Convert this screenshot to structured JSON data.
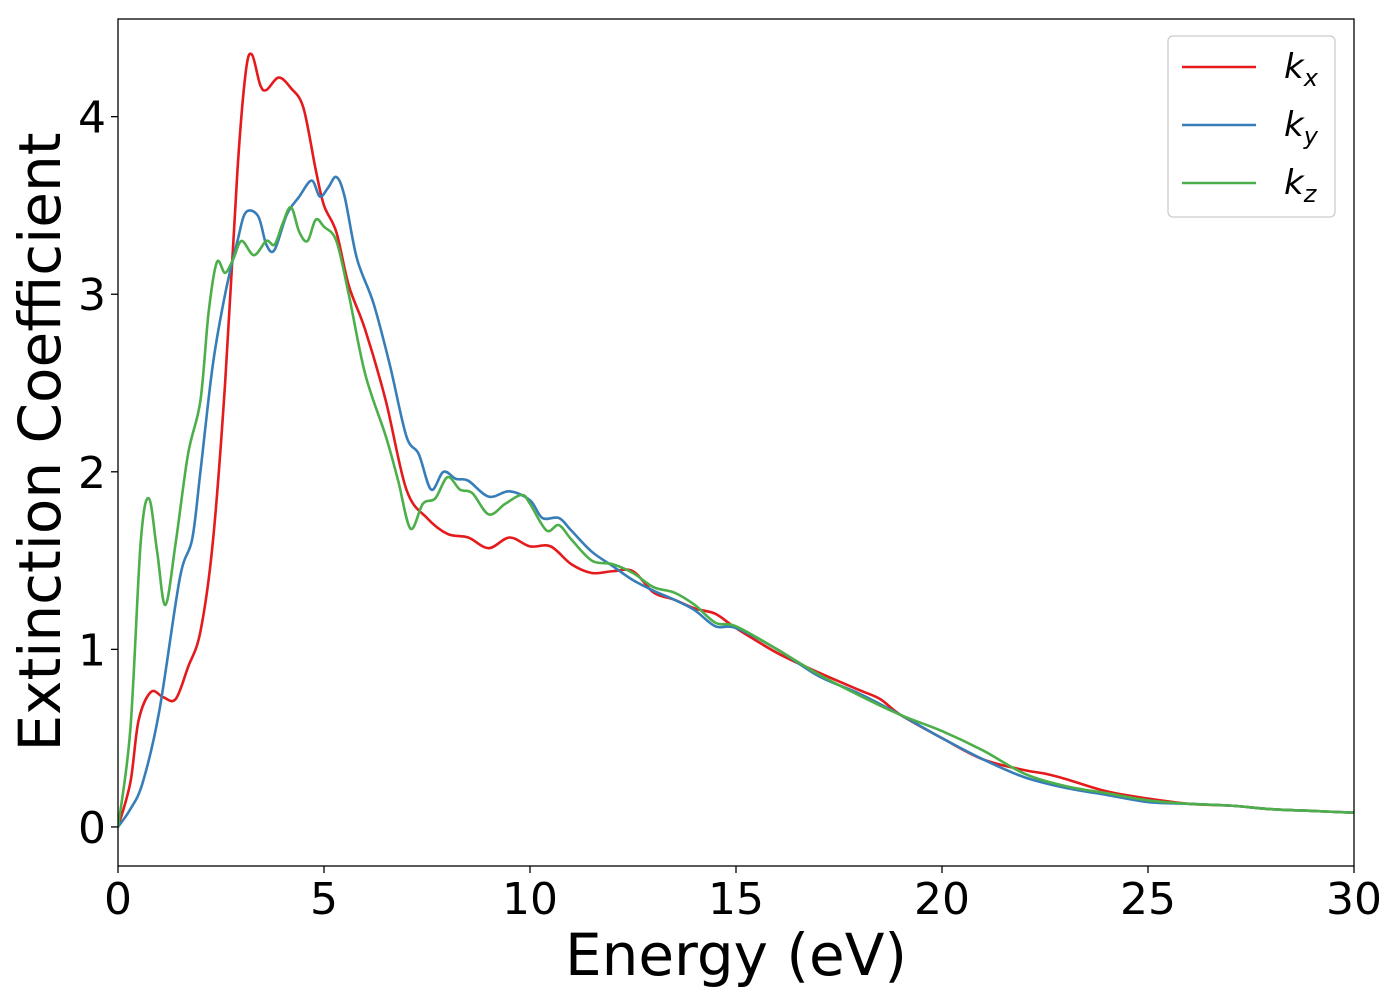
{
  "chart_data": {
    "type": "line",
    "title": "",
    "xlabel": "Energy (eV)",
    "ylabel": "Extinction Coefficient",
    "xlim": [
      0,
      30
    ],
    "ylim": [
      -0.22,
      4.55
    ],
    "xticks": [
      0,
      5,
      10,
      15,
      20,
      25,
      30
    ],
    "xtick_labels": [
      "0",
      "5",
      "10",
      "15",
      "20",
      "25",
      "30"
    ],
    "yticks": [
      0,
      1,
      2,
      3,
      4
    ],
    "ytick_labels": [
      "0",
      "1",
      "2",
      "3",
      "4"
    ],
    "grid": false,
    "legend_position": "top-right",
    "series": [
      {
        "name": "k_x",
        "legend_main": "k",
        "legend_sub": "x",
        "color": "#e41a1c",
        "x": [
          0,
          0.3,
          0.5,
          0.8,
          1.1,
          1.4,
          1.7,
          2.0,
          2.3,
          2.6,
          2.9,
          3.1,
          3.25,
          3.45,
          3.6,
          3.9,
          4.2,
          4.5,
          4.8,
          5.0,
          5.3,
          5.6,
          6.0,
          6.5,
          7.0,
          7.5,
          8.0,
          8.5,
          9.0,
          9.5,
          10.0,
          10.5,
          11.0,
          11.5,
          12.0,
          12.5,
          13.0,
          13.5,
          14.0,
          14.5,
          15.0,
          16.0,
          17.0,
          18.0,
          18.5,
          19.0,
          20.0,
          21.0,
          22.0,
          22.5,
          23.0,
          24.0,
          25.0,
          26.0,
          27.0,
          28.0,
          29.0,
          30.0
        ],
        "y": [
          0.0,
          0.25,
          0.6,
          0.76,
          0.73,
          0.72,
          0.9,
          1.1,
          1.6,
          2.5,
          3.7,
          4.25,
          4.35,
          4.18,
          4.15,
          4.22,
          4.16,
          4.05,
          3.7,
          3.5,
          3.35,
          3.05,
          2.8,
          2.4,
          1.9,
          1.74,
          1.65,
          1.63,
          1.57,
          1.63,
          1.58,
          1.58,
          1.48,
          1.43,
          1.44,
          1.44,
          1.32,
          1.28,
          1.23,
          1.2,
          1.12,
          0.98,
          0.87,
          0.77,
          0.72,
          0.63,
          0.5,
          0.38,
          0.32,
          0.3,
          0.27,
          0.2,
          0.16,
          0.13,
          0.12,
          0.1,
          0.09,
          0.08
        ]
      },
      {
        "name": "k_y",
        "legend_main": "k",
        "legend_sub": "y",
        "color": "#377eb8",
        "x": [
          0,
          0.3,
          0.6,
          1.0,
          1.5,
          1.8,
          2.0,
          2.3,
          2.6,
          2.9,
          3.1,
          3.4,
          3.6,
          3.8,
          4.1,
          4.4,
          4.7,
          4.9,
          5.1,
          5.3,
          5.5,
          5.8,
          6.2,
          6.6,
          7.0,
          7.3,
          7.6,
          7.9,
          8.2,
          8.5,
          9.0,
          9.5,
          10.0,
          10.3,
          10.7,
          11.0,
          11.5,
          12.0,
          12.5,
          13.0,
          13.5,
          14.0,
          14.5,
          15.0,
          16.0,
          17.0,
          18.0,
          19.0,
          20.0,
          21.0,
          22.0,
          23.0,
          24.0,
          25.0,
          26.0,
          27.0,
          28.0,
          29.0,
          30.0
        ],
        "y": [
          0.0,
          0.1,
          0.25,
          0.65,
          1.4,
          1.62,
          2.0,
          2.6,
          3.0,
          3.3,
          3.46,
          3.44,
          3.28,
          3.25,
          3.45,
          3.55,
          3.64,
          3.55,
          3.6,
          3.66,
          3.55,
          3.2,
          2.95,
          2.6,
          2.2,
          2.1,
          1.9,
          2.0,
          1.96,
          1.95,
          1.86,
          1.89,
          1.84,
          1.74,
          1.74,
          1.67,
          1.55,
          1.47,
          1.39,
          1.33,
          1.28,
          1.22,
          1.13,
          1.12,
          1.0,
          0.85,
          0.75,
          0.63,
          0.5,
          0.38,
          0.28,
          0.22,
          0.18,
          0.14,
          0.13,
          0.12,
          0.1,
          0.09,
          0.08
        ]
      },
      {
        "name": "k_z",
        "legend_main": "k",
        "legend_sub": "z",
        "color": "#4daf4a",
        "x": [
          0,
          0.3,
          0.55,
          0.75,
          0.95,
          1.15,
          1.4,
          1.7,
          2.0,
          2.2,
          2.4,
          2.6,
          2.8,
          3.0,
          3.3,
          3.6,
          3.8,
          4.0,
          4.2,
          4.4,
          4.6,
          4.8,
          5.0,
          5.3,
          5.6,
          6.0,
          6.5,
          6.8,
          7.1,
          7.4,
          7.7,
          8.0,
          8.3,
          8.6,
          9.0,
          9.4,
          9.8,
          10.0,
          10.4,
          10.7,
          11.0,
          11.5,
          12.0,
          12.5,
          13.0,
          13.5,
          14.0,
          14.5,
          15.0,
          16.0,
          17.0,
          18.0,
          19.0,
          20.0,
          21.0,
          22.0,
          23.0,
          24.0,
          25.0,
          26.0,
          27.0,
          28.0,
          29.0,
          30.0
        ],
        "y": [
          0.0,
          0.55,
          1.6,
          1.85,
          1.55,
          1.25,
          1.6,
          2.1,
          2.4,
          2.9,
          3.18,
          3.12,
          3.2,
          3.3,
          3.22,
          3.3,
          3.28,
          3.4,
          3.49,
          3.35,
          3.3,
          3.42,
          3.38,
          3.3,
          3.0,
          2.55,
          2.2,
          1.95,
          1.68,
          1.82,
          1.85,
          1.97,
          1.9,
          1.88,
          1.76,
          1.82,
          1.87,
          1.82,
          1.67,
          1.7,
          1.62,
          1.5,
          1.48,
          1.43,
          1.35,
          1.32,
          1.25,
          1.15,
          1.13,
          1.0,
          0.86,
          0.74,
          0.63,
          0.54,
          0.43,
          0.3,
          0.23,
          0.19,
          0.15,
          0.13,
          0.12,
          0.1,
          0.09,
          0.08
        ]
      }
    ]
  }
}
